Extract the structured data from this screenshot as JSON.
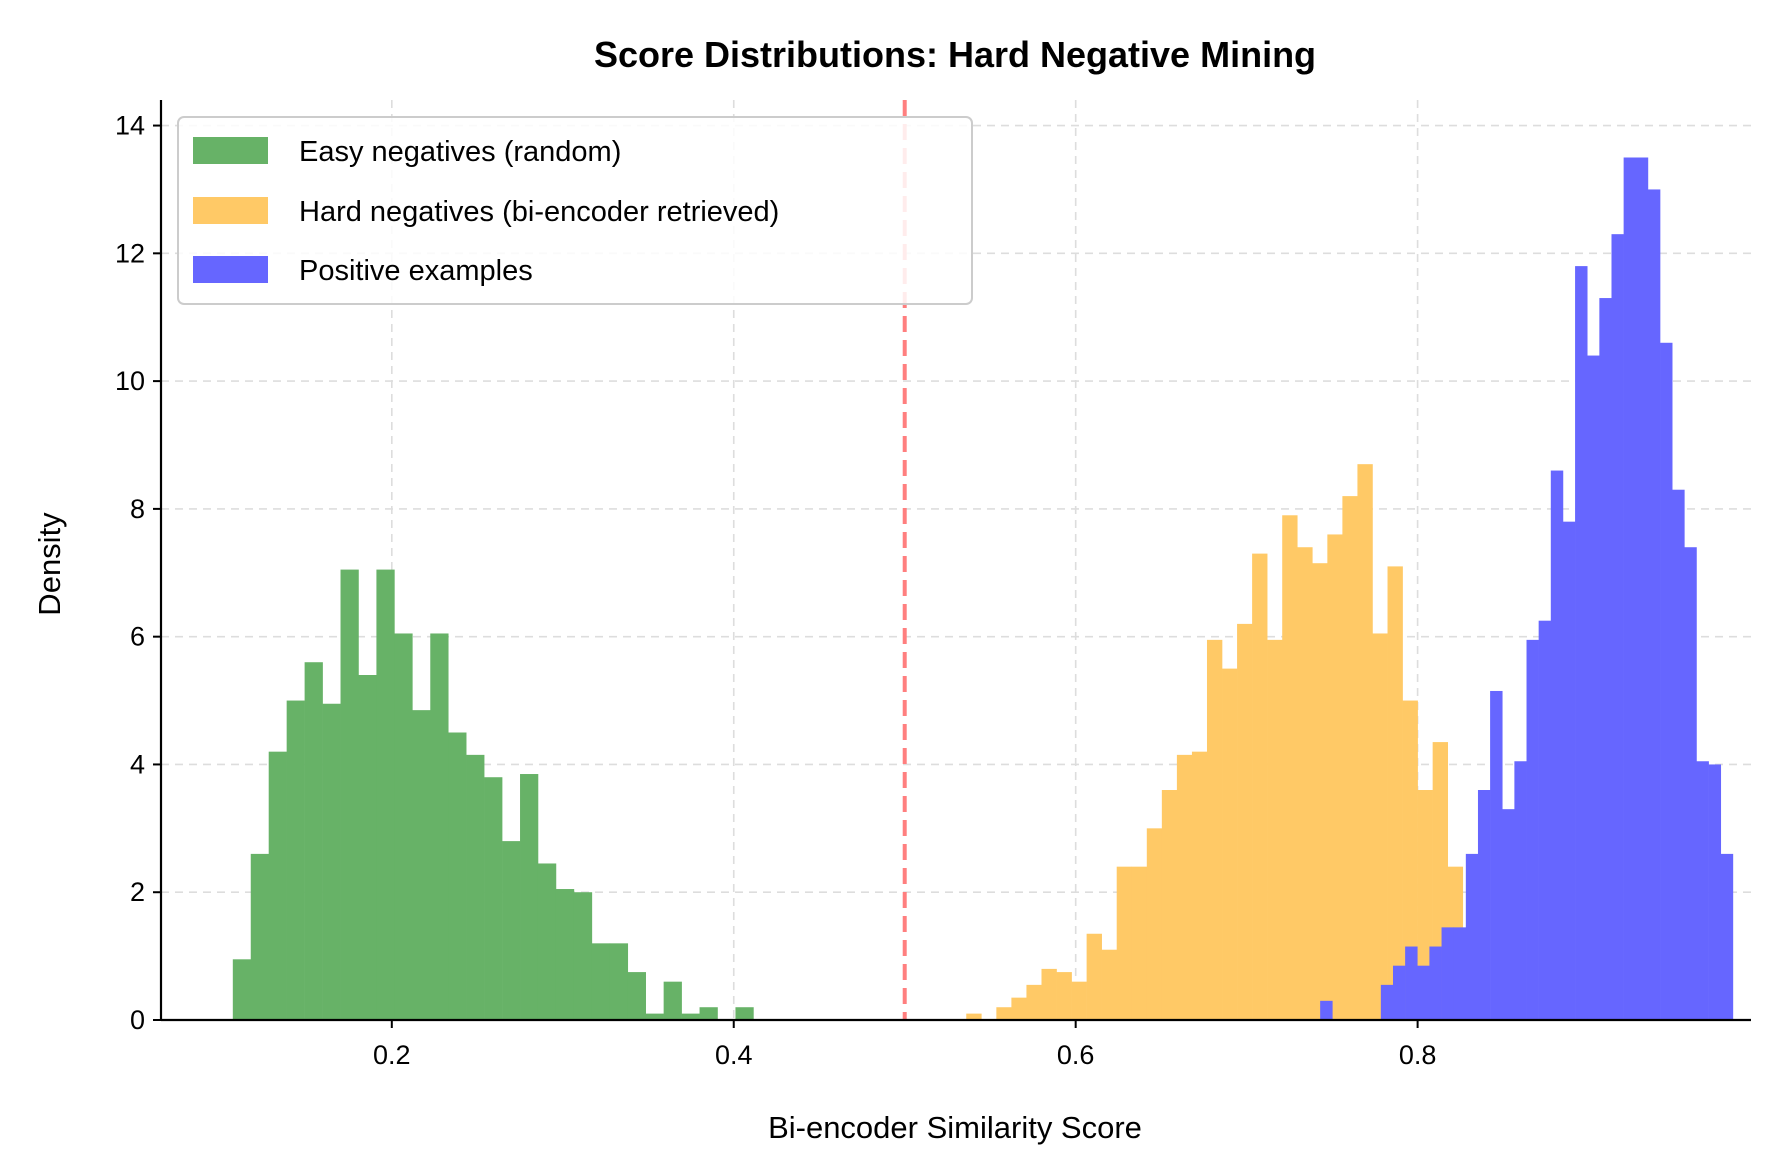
{
  "chart_data": {
    "type": "histogram",
    "title": "Score Distributions: Hard Negative Mining",
    "xlabel": "Bi-encoder Similarity Score",
    "ylabel": "Density",
    "xlim": [
      0.065,
      0.995
    ],
    "ylim": [
      0,
      14.4
    ],
    "xticks": [
      0.2,
      0.4,
      0.6,
      0.8
    ],
    "xtick_labels": [
      "0.2",
      "0.4",
      "0.6",
      "0.8"
    ],
    "yticks": [
      0,
      2,
      4,
      6,
      8,
      10,
      12,
      14
    ],
    "ytick_labels": [
      "0",
      "2",
      "4",
      "6",
      "8",
      "10",
      "12",
      "14"
    ],
    "grid": true,
    "legend_position": "top-left",
    "threshold_line": {
      "x": 0.5,
      "color": "#ff7f7f",
      "style": "dashed"
    },
    "series": [
      {
        "name": "Easy negatives (random)",
        "color": "#67b267",
        "bin_start": 0.107,
        "bin_width": 0.0105,
        "values": [
          0.95,
          2.6,
          4.2,
          5.0,
          5.6,
          4.95,
          7.05,
          5.4,
          7.05,
          6.05,
          4.85,
          6.05,
          4.5,
          4.15,
          3.8,
          2.8,
          3.85,
          2.45,
          2.05,
          2.0,
          1.2,
          1.2,
          0.75,
          0.1,
          0.6,
          0.1,
          0.2,
          0.0,
          0.2
        ]
      },
      {
        "name": "Hard negatives (bi-encoder retrieved)",
        "color": "#ffc966",
        "bin_start": 0.536,
        "bin_width": 0.0088,
        "values": [
          0.1,
          0.0,
          0.2,
          0.35,
          0.55,
          0.8,
          0.75,
          0.6,
          1.35,
          1.1,
          2.4,
          2.4,
          3.0,
          3.6,
          4.15,
          4.2,
          5.95,
          5.5,
          6.2,
          7.3,
          5.95,
          7.9,
          7.4,
          7.15,
          7.6,
          8.2,
          8.7,
          6.05,
          7.1,
          5.0,
          3.6,
          4.35,
          2.4
        ]
      },
      {
        "name": "Positive examples",
        "color": "#6666ff",
        "bin_start": 0.743,
        "bin_width": 0.0071,
        "values": [
          0.3,
          0.0,
          0.0,
          0.0,
          0.0,
          0.55,
          0.85,
          1.15,
          0.85,
          1.15,
          1.45,
          1.45,
          2.6,
          3.6,
          5.15,
          3.3,
          4.05,
          5.95,
          6.25,
          8.6,
          7.8,
          11.8,
          10.4,
          11.3,
          12.3,
          13.5,
          13.5,
          13.0,
          10.6,
          8.3,
          7.4,
          4.05,
          4.0,
          2.6
        ]
      }
    ]
  }
}
